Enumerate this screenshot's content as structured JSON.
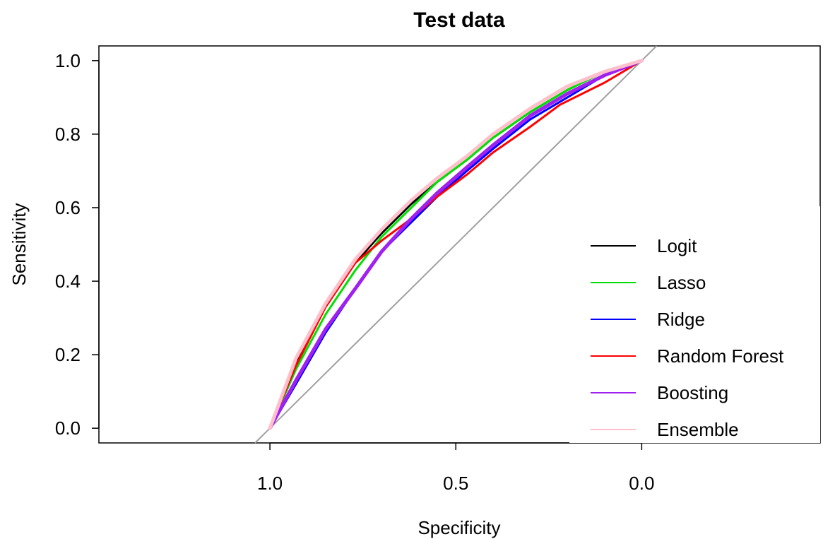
{
  "chart_data": {
    "type": "line",
    "title": "Test data",
    "xlabel": "Specificity",
    "ylabel": "Sensitivity",
    "x_reversed": true,
    "xlim": [
      1.46,
      -0.48
    ],
    "ylim": [
      -0.04,
      1.04
    ],
    "x_ticks": [
      1.0,
      0.5,
      0.0
    ],
    "x_tick_labels": [
      "1.0",
      "0.5",
      "0.0"
    ],
    "y_ticks": [
      0.0,
      0.2,
      0.4,
      0.6,
      0.8,
      1.0
    ],
    "y_tick_labels": [
      "0.0",
      "0.2",
      "0.4",
      "0.6",
      "0.8",
      "1.0"
    ],
    "reference_line": {
      "from": [
        1.0,
        0.0
      ],
      "to": [
        0.0,
        1.0
      ],
      "color": "#a0a0a0"
    },
    "legend_position": "bottom-right",
    "series": [
      {
        "name": "Logit",
        "color": "#000000",
        "points": [
          [
            1.0,
            0.0
          ],
          [
            0.93,
            0.18
          ],
          [
            0.85,
            0.34
          ],
          [
            0.77,
            0.45
          ],
          [
            0.7,
            0.53
          ],
          [
            0.62,
            0.61
          ],
          [
            0.55,
            0.67
          ],
          [
            0.47,
            0.73
          ],
          [
            0.4,
            0.79
          ],
          [
            0.3,
            0.86
          ],
          [
            0.2,
            0.92
          ],
          [
            0.1,
            0.97
          ],
          [
            0.0,
            1.0
          ]
        ]
      },
      {
        "name": "Lasso",
        "color": "#00e000",
        "points": [
          [
            1.0,
            0.0
          ],
          [
            0.93,
            0.16
          ],
          [
            0.85,
            0.31
          ],
          [
            0.77,
            0.43
          ],
          [
            0.7,
            0.52
          ],
          [
            0.62,
            0.6
          ],
          [
            0.55,
            0.67
          ],
          [
            0.47,
            0.73
          ],
          [
            0.4,
            0.79
          ],
          [
            0.3,
            0.86
          ],
          [
            0.2,
            0.92
          ],
          [
            0.1,
            0.97
          ],
          [
            0.0,
            1.0
          ]
        ]
      },
      {
        "name": "Ridge",
        "color": "#0000ff",
        "points": [
          [
            1.0,
            0.0
          ],
          [
            0.93,
            0.12
          ],
          [
            0.85,
            0.26
          ],
          [
            0.77,
            0.38
          ],
          [
            0.7,
            0.48
          ],
          [
            0.62,
            0.56
          ],
          [
            0.55,
            0.63
          ],
          [
            0.47,
            0.7
          ],
          [
            0.4,
            0.76
          ],
          [
            0.3,
            0.84
          ],
          [
            0.2,
            0.9
          ],
          [
            0.1,
            0.96
          ],
          [
            0.0,
            1.0
          ]
        ]
      },
      {
        "name": "Random Forest",
        "color": "#ff0000",
        "points": [
          [
            1.0,
            0.0
          ],
          [
            0.93,
            0.17
          ],
          [
            0.85,
            0.33
          ],
          [
            0.77,
            0.45
          ],
          [
            0.7,
            0.51
          ],
          [
            0.62,
            0.57
          ],
          [
            0.55,
            0.63
          ],
          [
            0.47,
            0.69
          ],
          [
            0.4,
            0.75
          ],
          [
            0.3,
            0.82
          ],
          [
            0.22,
            0.88
          ],
          [
            0.1,
            0.94
          ],
          [
            0.0,
            1.0
          ]
        ]
      },
      {
        "name": "Boosting",
        "color": "#a020f0",
        "points": [
          [
            1.0,
            0.0
          ],
          [
            0.93,
            0.13
          ],
          [
            0.85,
            0.27
          ],
          [
            0.77,
            0.38
          ],
          [
            0.7,
            0.48
          ],
          [
            0.62,
            0.57
          ],
          [
            0.55,
            0.64
          ],
          [
            0.47,
            0.71
          ],
          [
            0.4,
            0.77
          ],
          [
            0.3,
            0.85
          ],
          [
            0.2,
            0.91
          ],
          [
            0.1,
            0.96
          ],
          [
            0.0,
            1.0
          ]
        ]
      },
      {
        "name": "Ensemble",
        "color": "#ffc0cb",
        "points": [
          [
            1.0,
            0.0
          ],
          [
            0.93,
            0.19
          ],
          [
            0.85,
            0.34
          ],
          [
            0.77,
            0.46
          ],
          [
            0.7,
            0.54
          ],
          [
            0.62,
            0.62
          ],
          [
            0.55,
            0.68
          ],
          [
            0.47,
            0.74
          ],
          [
            0.4,
            0.8
          ],
          [
            0.3,
            0.87
          ],
          [
            0.2,
            0.93
          ],
          [
            0.1,
            0.97
          ],
          [
            0.0,
            1.0
          ]
        ]
      }
    ]
  }
}
